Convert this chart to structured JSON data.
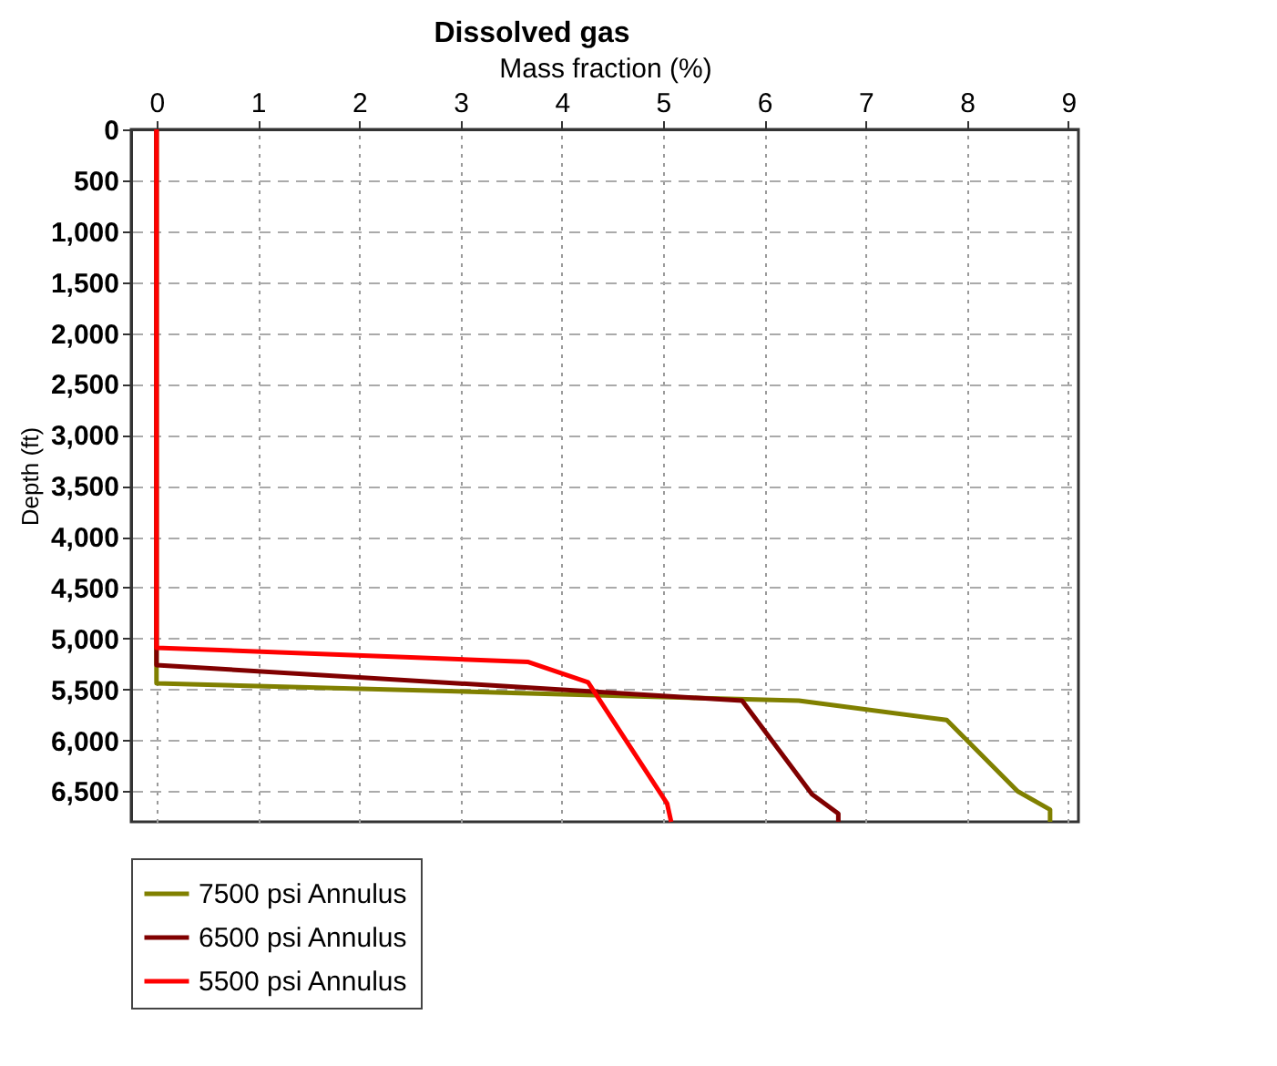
{
  "chart_data": {
    "type": "line",
    "title": "Dissolved gas",
    "xlabel": "Mass fraction (%)",
    "ylabel": "Depth (ft)",
    "xlim": [
      -0.25,
      9.1
    ],
    "xticks": [
      0,
      1,
      2,
      3,
      4,
      5,
      6,
      7,
      8,
      9
    ],
    "ylim": [
      6800,
      0
    ],
    "yticks": [
      0,
      500,
      {
        "value": 1000,
        "label": "1,000"
      },
      {
        "value": 1500,
        "label": "1,500"
      },
      {
        "value": 2000,
        "label": "2,000"
      },
      {
        "value": 2500,
        "label": "2,500"
      },
      {
        "value": 3000,
        "label": "3,000"
      },
      {
        "value": 3500,
        "label": "3,500"
      },
      {
        "value": 4000,
        "label": "4,000"
      },
      {
        "value": 4500,
        "label": "4,500"
      },
      {
        "value": 5000,
        "label": "5,000"
      },
      {
        "value": 5500,
        "label": "5,500"
      },
      {
        "value": 6000,
        "label": "6,000"
      },
      {
        "value": 6500,
        "label": "6,500"
      }
    ],
    "grid": true,
    "legend": "bottom",
    "line_style": "solid",
    "marker": "none",
    "series": [
      {
        "name": "7500 psi Annulus",
        "color": "#808000",
        "x": [
          0,
          0,
          6.34,
          7.8,
          8.5,
          8.82,
          8.82
        ],
        "values": [
          0,
          5440,
          5610,
          5800,
          6500,
          6680,
          6800
        ]
      },
      {
        "name": "6500 psi Annulus",
        "color": "#800000",
        "x": [
          0,
          0,
          5.78,
          6.47,
          6.73,
          6.73
        ],
        "values": [
          0,
          5260,
          5610,
          6530,
          6720,
          6800
        ]
      },
      {
        "name": "5500 psi Annulus",
        "color": "#ff0000",
        "x": [
          0,
          0,
          3.67,
          4.26,
          5.04,
          5.08
        ],
        "values": [
          0,
          5090,
          5230,
          5430,
          6620,
          6800
        ]
      }
    ]
  }
}
